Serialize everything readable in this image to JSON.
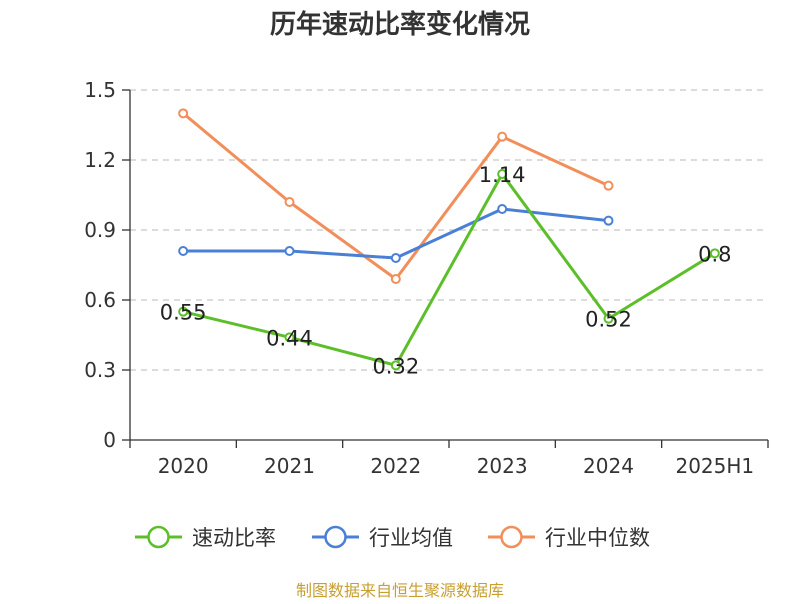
{
  "chart_data": {
    "type": "line",
    "title": "历年速动比率变化情况",
    "categories": [
      "2020",
      "2021",
      "2022",
      "2023",
      "2024",
      "2025H1"
    ],
    "ylim": [
      0,
      1.5
    ],
    "yticks": [
      "0",
      "0.3",
      "0.6",
      "0.9",
      "1.2",
      "1.5"
    ],
    "ytick_values": [
      0,
      0.3,
      0.6,
      0.9,
      1.2,
      1.5
    ],
    "grid": true,
    "legend_position": "bottom",
    "series": [
      {
        "name": "速动比率",
        "color": "#5cbf2a",
        "values": [
          0.55,
          0.44,
          0.32,
          1.14,
          0.52,
          0.8
        ],
        "labels": [
          "0.55",
          "0.44",
          "0.32",
          "1.14",
          "0.52",
          "0.8"
        ]
      },
      {
        "name": "行业均值",
        "color": "#4a7fd6",
        "values": [
          0.81,
          0.81,
          0.78,
          0.99,
          0.94,
          null
        ]
      },
      {
        "name": "行业中位数",
        "color": "#f28e5a",
        "values": [
          1.4,
          1.02,
          0.69,
          1.3,
          1.09,
          null
        ]
      }
    ],
    "source": "制图数据来自恒生聚源数据库"
  }
}
